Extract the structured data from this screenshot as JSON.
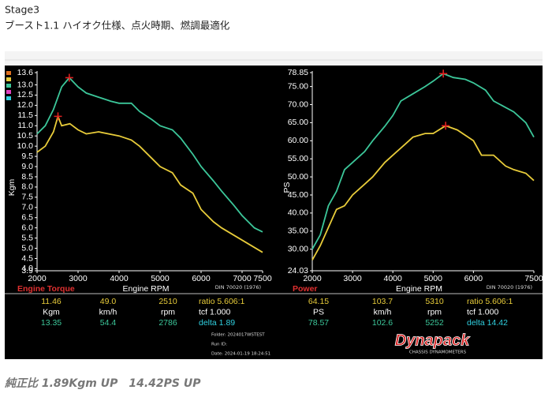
{
  "header": {
    "title": "Stage3",
    "subtitle": "ブースト1.1 ハイオク仕様、点火時期、燃調最適化"
  },
  "chart_data": [
    {
      "type": "line",
      "title": "Engine Torque",
      "x_label": "Engine RPM",
      "y_label": "Kgm",
      "note": "DIN 70020 (1976)",
      "xlim": [
        2000,
        7500
      ],
      "xticks": [
        2000,
        3000,
        4000,
        5000,
        6000,
        7000,
        7500
      ],
      "ylim": [
        3.9,
        13.6
      ],
      "yticks": [
        13.6,
        {
          "value": 13,
          "label": "13.0"
        },
        12.5,
        {
          "value": 12,
          "label": "12.0"
        },
        11.5,
        {
          "value": 11,
          "label": "11.0"
        },
        10.5,
        {
          "value": 10,
          "label": "10.0"
        },
        9.5,
        {
          "value": 9,
          "label": "9.0"
        },
        8.5,
        {
          "value": 8,
          "label": "8.0"
        },
        7.5,
        {
          "value": 7,
          "label": "7.0"
        },
        6.5,
        {
          "value": 6,
          "label": "6.0"
        },
        5.5,
        {
          "value": 5,
          "label": "5.0"
        },
        4.5,
        {
          "value": 4,
          "label": "4.0"
        },
        3.9
      ],
      "series": [
        {
          "color": "#e8cc3a",
          "x": [
            2000,
            2200,
            2400,
            2510,
            2600,
            2800,
            3000,
            3200,
            3500,
            4000,
            4300,
            4500,
            4800,
            5000,
            5300,
            5500,
            5800,
            6000,
            6300,
            6500,
            7000,
            7500
          ],
          "values": [
            9.7,
            10.0,
            10.7,
            11.46,
            11.0,
            11.1,
            10.8,
            10.6,
            10.7,
            10.5,
            10.3,
            10.0,
            9.4,
            9.0,
            8.7,
            8.1,
            7.7,
            6.9,
            6.3,
            6.0,
            5.4,
            4.8
          ]
        },
        {
          "color": "#3cc79a",
          "x": [
            2000,
            2200,
            2400,
            2600,
            2786,
            3000,
            3200,
            3500,
            3800,
            4000,
            4300,
            4500,
            4800,
            5000,
            5300,
            5500,
            5800,
            6000,
            6300,
            6500,
            6800,
            7000,
            7300,
            7500
          ],
          "values": [
            10.6,
            11.0,
            11.8,
            12.9,
            13.35,
            12.9,
            12.6,
            12.4,
            12.2,
            12.1,
            12.1,
            11.7,
            11.3,
            11.0,
            10.8,
            10.4,
            9.6,
            9.0,
            8.3,
            7.8,
            7.1,
            6.6,
            6.0,
            5.8
          ]
        }
      ],
      "readout": [
        [
          "11.46",
          "49.0",
          "2510",
          "ratio  5.606:1"
        ],
        [
          "Kgm",
          "km/h",
          "rpm",
          "tcf  1.000"
        ],
        [
          "13.35",
          "54.4",
          "2786",
          "delta  1.89"
        ]
      ]
    },
    {
      "type": "line",
      "title": "Power",
      "x_label": "Engine RPM",
      "y_label": "PS",
      "note": "DIN 70020 (1976)",
      "xlim": [
        2000,
        7500
      ],
      "xticks": [
        2000,
        3000,
        4000,
        5000,
        6000,
        7500
      ],
      "ylim": [
        24.03,
        78.85
      ],
      "yticks": [
        78.85,
        {
          "value": 75,
          "label": "75.00"
        },
        {
          "value": 70,
          "label": "70.00"
        },
        {
          "value": 65,
          "label": "65.00"
        },
        {
          "value": 60,
          "label": "60.00"
        },
        {
          "value": 55,
          "label": "55.00"
        },
        {
          "value": 50,
          "label": "50.00"
        },
        {
          "value": 45,
          "label": "45.00"
        },
        {
          "value": 40,
          "label": "40.00"
        },
        {
          "value": 35,
          "label": "35.00"
        },
        {
          "value": 30,
          "label": "30.00"
        },
        24.03
      ],
      "series": [
        {
          "color": "#e8cc3a",
          "x": [
            2000,
            2200,
            2400,
            2600,
            2800,
            3000,
            3300,
            3500,
            3800,
            4000,
            4300,
            4500,
            4800,
            5000,
            5310,
            5600,
            6000,
            6200,
            6500,
            6800,
            7000,
            7300,
            7500
          ],
          "values": [
            27,
            31,
            36,
            41,
            42,
            45,
            48,
            50,
            54,
            56,
            59,
            61,
            62,
            62,
            64.15,
            63,
            60,
            56,
            56,
            53,
            52,
            51,
            49
          ]
        },
        {
          "color": "#3cc79a",
          "x": [
            2000,
            2200,
            2400,
            2600,
            2800,
            3000,
            3300,
            3500,
            3800,
            4000,
            4200,
            4500,
            4800,
            5000,
            5252,
            5500,
            5800,
            6000,
            6300,
            6500,
            7000,
            7300,
            7500
          ],
          "values": [
            30,
            34,
            42,
            46,
            52,
            54,
            57,
            60,
            64,
            67,
            71,
            73,
            75,
            76.5,
            78.57,
            77.5,
            77,
            76,
            74,
            71,
            68,
            65,
            61
          ]
        }
      ],
      "readout": [
        [
          "64.15",
          "103.7",
          "5310",
          "ratio  5.606:1"
        ],
        [
          "PS",
          "km/h",
          "rpm",
          "tcf  1.000"
        ],
        [
          "78.57",
          "102.6",
          "5252",
          "delta  14.42"
        ]
      ]
    }
  ],
  "run_info": {
    "folder": "Folder:   2024017WSTEST",
    "run_id": "Run ID:",
    "date": "Date:   2024-01-19 18:24:51"
  },
  "logo": {
    "name": "Dynapack",
    "tagline": "CHASSIS DYNAMOMETERS"
  },
  "footer": "純正比 1.89Kgm UP　14.42PS UP"
}
